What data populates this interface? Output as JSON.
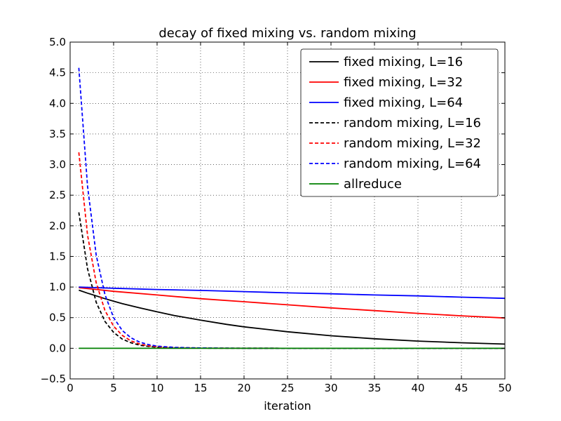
{
  "chart_data": {
    "type": "line",
    "title": "decay of fixed mixing vs. random mixing",
    "xlabel": "iteration",
    "ylabel": "",
    "xlim": [
      0,
      50
    ],
    "ylim": [
      -0.5,
      5.0
    ],
    "xticks": [
      0,
      5,
      10,
      15,
      20,
      25,
      30,
      35,
      40,
      45,
      50
    ],
    "yticks": [
      -0.5,
      0.0,
      0.5,
      1.0,
      1.5,
      2.0,
      2.5,
      3.0,
      3.5,
      4.0,
      4.5,
      5.0
    ],
    "xtick_labels": [
      "0",
      "5",
      "10",
      "15",
      "20",
      "25",
      "30",
      "35",
      "40",
      "45",
      "50"
    ],
    "ytick_labels": [
      "−0.5",
      "0.0",
      "0.5",
      "1.0",
      "1.5",
      "2.0",
      "2.5",
      "3.0",
      "3.5",
      "4.0",
      "4.5",
      "5.0"
    ],
    "grid": true,
    "legend_position": "top-right",
    "series": [
      {
        "name": "fixed mixing, L=16",
        "color": "#000000",
        "dash": "solid",
        "x": [
          1,
          2,
          3,
          4,
          5,
          6,
          8,
          10,
          12,
          15,
          18,
          20,
          25,
          30,
          35,
          40,
          45,
          50
        ],
        "y": [
          0.95,
          0.9,
          0.855,
          0.81,
          0.77,
          0.73,
          0.66,
          0.595,
          0.535,
          0.46,
          0.39,
          0.35,
          0.27,
          0.205,
          0.155,
          0.118,
          0.09,
          0.068
        ]
      },
      {
        "name": "fixed mixing, L=32",
        "color": "#ff0000",
        "dash": "solid",
        "x": [
          1,
          5,
          10,
          15,
          20,
          25,
          30,
          35,
          40,
          45,
          50
        ],
        "y": [
          0.99,
          0.93,
          0.87,
          0.81,
          0.76,
          0.71,
          0.66,
          0.615,
          0.57,
          0.53,
          0.495
        ]
      },
      {
        "name": "fixed mixing, L=64",
        "color": "#0000ff",
        "dash": "solid",
        "x": [
          1,
          5,
          10,
          15,
          20,
          25,
          30,
          35,
          40,
          45,
          50
        ],
        "y": [
          1.0,
          0.98,
          0.96,
          0.945,
          0.925,
          0.905,
          0.89,
          0.87,
          0.855,
          0.835,
          0.815
        ]
      },
      {
        "name": "random mixing, L=16",
        "color": "#000000",
        "dash": "dashed",
        "x": [
          1,
          2,
          3,
          4,
          5,
          6,
          7,
          8,
          9,
          10,
          12,
          14,
          16,
          20,
          30,
          40,
          50
        ],
        "y": [
          2.22,
          1.3,
          0.75,
          0.44,
          0.26,
          0.15,
          0.09,
          0.05,
          0.03,
          0.018,
          0.008,
          0.004,
          0.002,
          0.001,
          0.0,
          0.0,
          0.0
        ]
      },
      {
        "name": "random mixing, L=32",
        "color": "#ff0000",
        "dash": "dashed",
        "x": [
          1,
          2,
          3,
          4,
          5,
          6,
          7,
          8,
          9,
          10,
          12,
          14,
          16,
          20,
          30,
          40,
          50
        ],
        "y": [
          3.2,
          1.85,
          1.07,
          0.62,
          0.36,
          0.21,
          0.12,
          0.07,
          0.04,
          0.025,
          0.012,
          0.006,
          0.003,
          0.001,
          0.0,
          0.0,
          0.0
        ]
      },
      {
        "name": "random mixing, L=64",
        "color": "#0000ff",
        "dash": "dashed",
        "x": [
          1,
          2,
          3,
          4,
          5,
          6,
          7,
          8,
          9,
          10,
          12,
          14,
          16,
          20,
          30,
          40,
          50
        ],
        "y": [
          4.58,
          2.65,
          1.52,
          0.88,
          0.5,
          0.29,
          0.17,
          0.1,
          0.06,
          0.035,
          0.015,
          0.008,
          0.004,
          0.001,
          0.0,
          0.0,
          0.0
        ]
      },
      {
        "name": "allreduce",
        "color": "#008000",
        "dash": "solid",
        "x": [
          1,
          50
        ],
        "y": [
          0.0,
          0.0
        ]
      }
    ]
  }
}
